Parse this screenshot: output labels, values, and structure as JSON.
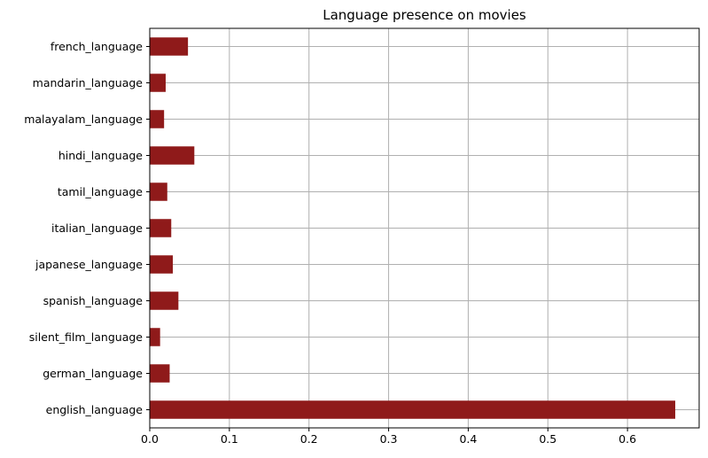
{
  "chart_data": {
    "type": "bar",
    "orientation": "horizontal",
    "title": "Language presence on movies",
    "xlabel": "",
    "ylabel": "",
    "categories": [
      "english_language",
      "german_language",
      "silent_film_language",
      "spanish_language",
      "japanese_language",
      "italian_language",
      "tamil_language",
      "hindi_language",
      "malayalam_language",
      "mandarin_language",
      "french_language"
    ],
    "values": [
      0.66,
      0.025,
      0.013,
      0.036,
      0.029,
      0.027,
      0.022,
      0.056,
      0.018,
      0.02,
      0.048
    ],
    "xlim": [
      0,
      0.69
    ],
    "xticks": [
      0,
      0.1,
      0.2,
      0.3,
      0.4,
      0.5,
      0.6
    ],
    "xtick_labels": [
      "0.0",
      "0.1",
      "0.2",
      "0.3",
      "0.4",
      "0.5",
      "0.6"
    ],
    "grid": true,
    "legend": "none",
    "bar_color": "#8f1a1a",
    "grid_color": "#b0b0b0"
  }
}
